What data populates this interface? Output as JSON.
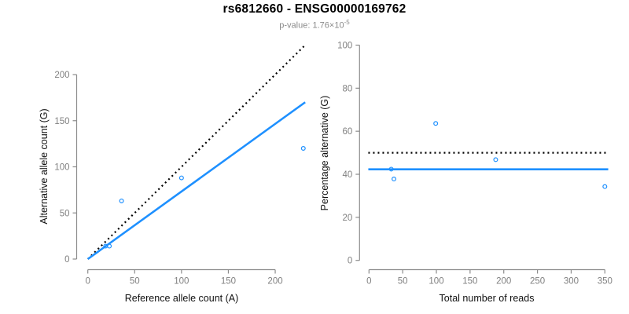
{
  "header": {
    "title": "rs6812660 - ENSG00000169762",
    "pvalue": {
      "label": "p-value:",
      "mantissa": "1.76",
      "base": "×10",
      "exponent": "-5"
    }
  },
  "colors": {
    "point_blue": "#1E90FF",
    "line_blue": "#1E90FF",
    "dotted_black": "#000000",
    "axis_gray": "#8C8C8C",
    "tick_label_gray": "#808080",
    "title_black": "#000000",
    "subtitle_gray": "#8A8A8A",
    "background": "#FFFFFF"
  },
  "chart_data": [
    {
      "name": "allele-counts-scatter",
      "type": "scatter",
      "xlabel": "Reference allele count (A)",
      "ylabel": "Alternative allele count (G)",
      "xticks": [
        0,
        50,
        100,
        150,
        200
      ],
      "yticks": [
        0,
        50,
        100,
        150,
        200
      ],
      "xlim": [
        0,
        232
      ],
      "ylim": [
        0,
        233
      ],
      "grid": false,
      "points": [
        [
          19,
          14
        ],
        [
          23,
          14
        ],
        [
          36,
          63
        ],
        [
          100,
          88
        ],
        [
          230,
          120
        ]
      ],
      "lines": [
        {
          "name": "identity-line",
          "style": "dotted",
          "color": "#000000",
          "width": 2.2,
          "from": [
            0,
            0
          ],
          "to": [
            231,
            231
          ]
        },
        {
          "name": "fitted-line",
          "style": "solid",
          "color": "#1E90FF",
          "width": 2.6,
          "from": [
            0,
            0
          ],
          "to": [
            232,
            170
          ]
        }
      ]
    },
    {
      "name": "percentage-vs-reads-scatter",
      "type": "scatter",
      "xlabel": "Total number of reads",
      "ylabel": "Percentage alternative (G)",
      "xticks": [
        0,
        50,
        100,
        150,
        200,
        250,
        300,
        350
      ],
      "yticks": [
        0,
        20,
        40,
        60,
        80,
        100
      ],
      "xlim": [
        0,
        357
      ],
      "ylim": [
        0,
        100
      ],
      "grid": false,
      "points": [
        [
          33,
          42.4
        ],
        [
          37,
          37.8
        ],
        [
          99,
          63.6
        ],
        [
          188,
          46.8
        ],
        [
          350,
          34.3
        ]
      ],
      "lines": [
        {
          "name": "expected-percentage-line",
          "style": "dotted",
          "color": "#000000",
          "width": 2.2,
          "from": [
            -1,
            50
          ],
          "to": [
            355,
            50
          ]
        },
        {
          "name": "mean-percentage-line",
          "style": "solid",
          "color": "#1E90FF",
          "width": 2.6,
          "from": [
            -1,
            42.3
          ],
          "to": [
            355,
            42.3
          ]
        }
      ]
    }
  ]
}
